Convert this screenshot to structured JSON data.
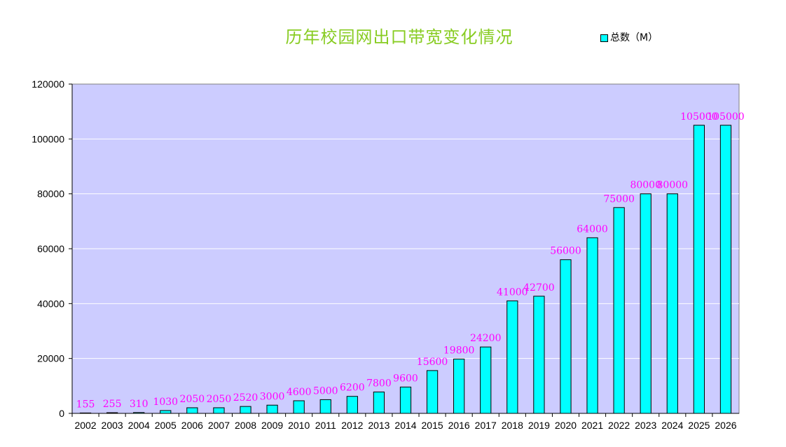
{
  "chart_data": {
    "type": "bar",
    "title": "历年校园网出口带宽变化情况",
    "legend": {
      "label": "总数（M）",
      "position": "top-right"
    },
    "categories": [
      "2002",
      "2003",
      "2004",
      "2005",
      "2006",
      "2007",
      "2008",
      "2009",
      "2010",
      "2011",
      "2012",
      "2013",
      "2014",
      "2015",
      "2016",
      "2017",
      "2018",
      "2019",
      "2020",
      "2021",
      "2022",
      "2023",
      "2024",
      "2025",
      "2026"
    ],
    "series": [
      {
        "name": "总数（M）",
        "values": [
          155,
          255,
          310,
          1030,
          2050,
          2050,
          2520,
          3000,
          4600,
          5000,
          6200,
          7800,
          9600,
          15600,
          19800,
          24200,
          41000,
          42700,
          56000,
          64000,
          75000,
          80000,
          80000,
          105000,
          105000
        ]
      }
    ],
    "y_ticks": [
      "0",
      "20000",
      "40000",
      "60000",
      "80000",
      "100000",
      "120000"
    ],
    "ylim": [
      0,
      120000
    ],
    "grid": true,
    "colors": {
      "bar": "#00ffff",
      "plot_bg": "#ccccff",
      "label": "#ff00ff",
      "title": "#88cc22"
    }
  }
}
